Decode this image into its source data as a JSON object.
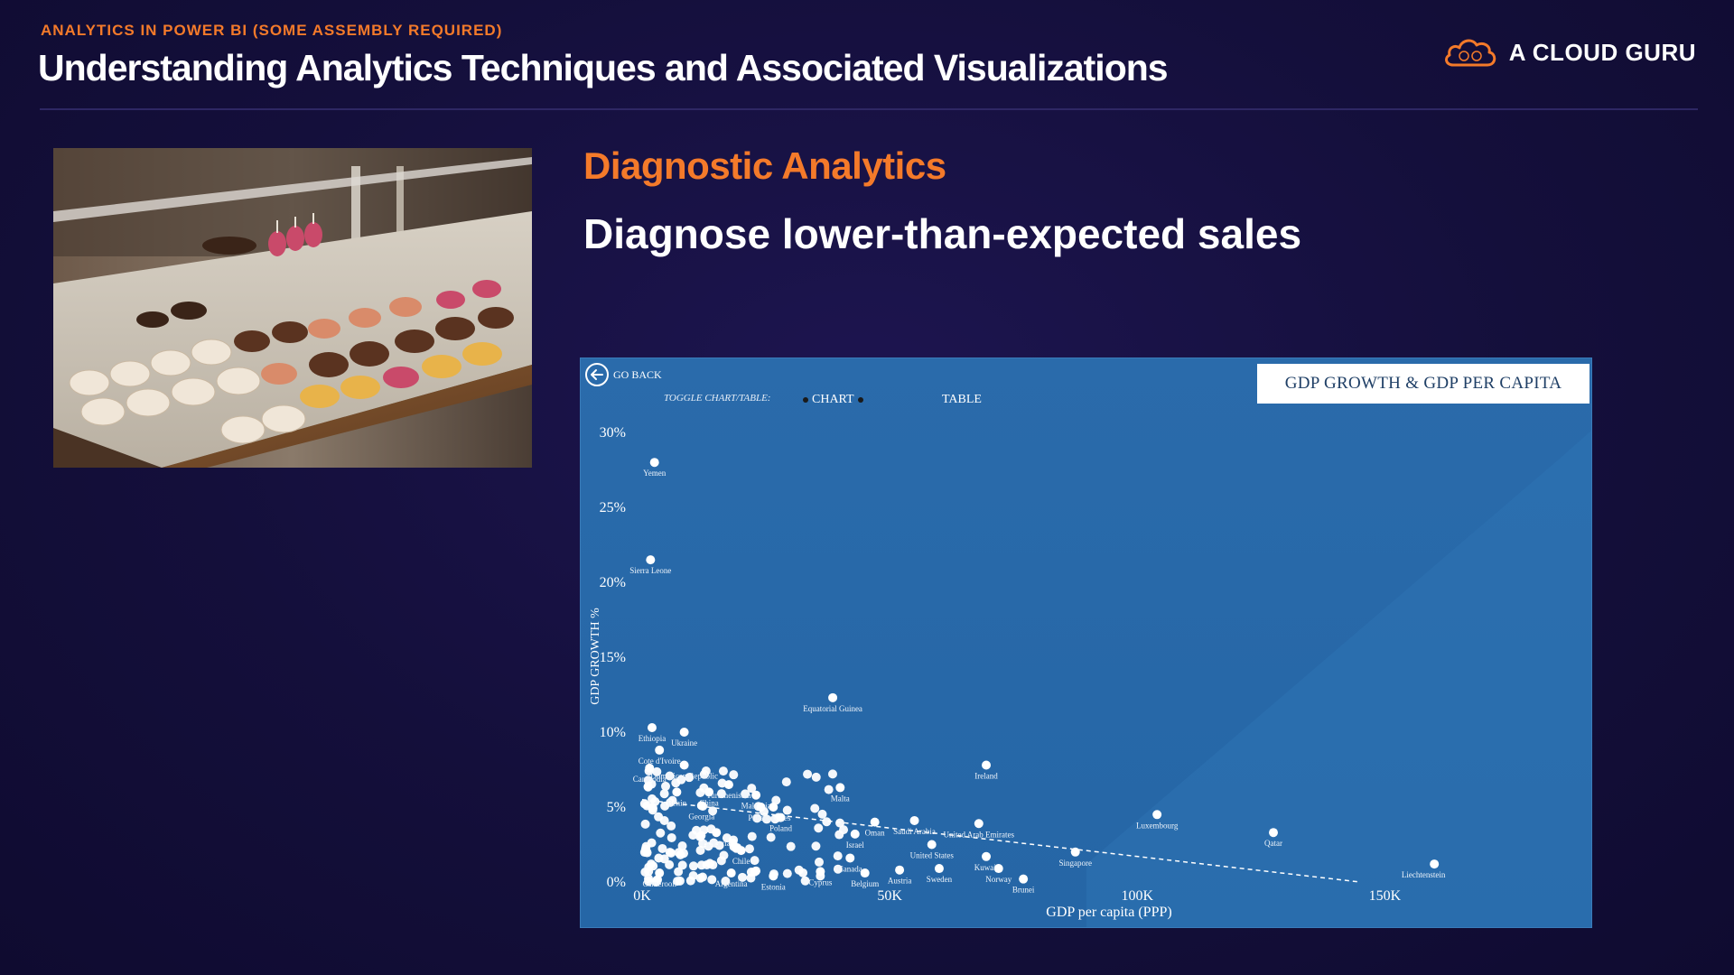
{
  "header": {
    "kicker": "ANALYTICS IN POWER BI (SOME ASSEMBLY REQUIRED)",
    "title": "Understanding Analytics Techniques and Associated Visualizations",
    "brand": "A CLOUD GURU",
    "brand_icon": "cloud-logo-icon"
  },
  "content": {
    "section_title": "Diagnostic  Analytics",
    "subtitle": "Diagnose lower-than-expected sales"
  },
  "colors": {
    "accent": "#f47a2a",
    "background": "#140f3b",
    "report_bg": "#2566a6"
  },
  "report": {
    "go_back": "GO BACK",
    "toggle_label": "TOGGLE CHART/TABLE:",
    "toggle_chart": "CHART",
    "toggle_table": "TABLE",
    "chart_title": "GDP GROWTH & GDP PER CAPITA"
  },
  "chart_data": {
    "type": "scatter",
    "title": "GDP GROWTH & GDP PER CAPITA",
    "xlabel": "GDP per capita (PPP)",
    "ylabel": "GDP GROWTH %",
    "xlim": [
      0,
      170000
    ],
    "ylim": [
      0,
      30
    ],
    "x_ticks": [
      0,
      50000,
      100000,
      150000
    ],
    "x_tick_labels": [
      "0K",
      "50K",
      "100K",
      "150K"
    ],
    "y_ticks": [
      0,
      5,
      10,
      15,
      20,
      25,
      30
    ],
    "y_tick_labels": [
      "0%",
      "5%",
      "10%",
      "15%",
      "20%",
      "25%",
      "30%"
    ],
    "trendline": {
      "style": "dashed",
      "from": [
        0,
        5.5
      ],
      "to": [
        145000,
        0
      ]
    },
    "points": [
      {
        "x": 2500,
        "y": 28,
        "label": "Yemen"
      },
      {
        "x": 1700,
        "y": 21.5,
        "label": "Sierra Leone"
      },
      {
        "x": 38500,
        "y": 12.3,
        "label": "Equatorial Guinea"
      },
      {
        "x": 2000,
        "y": 10.3,
        "label": "Ethiopia"
      },
      {
        "x": 8500,
        "y": 10.0,
        "label": "Ukraine"
      },
      {
        "x": 3500,
        "y": 8.8,
        "label": "Cote d'Ivoire"
      },
      {
        "x": 8500,
        "y": 7.8,
        "label": "Dominican Republic"
      },
      {
        "x": 17500,
        "y": 6.5,
        "label": "Turkmenistan"
      },
      {
        "x": 23000,
        "y": 5.8,
        "label": "Malaysia"
      },
      {
        "x": 40000,
        "y": 6.3,
        "label": "Malta"
      },
      {
        "x": 26500,
        "y": 5.0,
        "label": "Seychelles"
      },
      {
        "x": 24000,
        "y": 5.0,
        "label": "Panama"
      },
      {
        "x": 69500,
        "y": 7.8,
        "label": "Ireland"
      },
      {
        "x": 47000,
        "y": 4.0,
        "label": "Oman"
      },
      {
        "x": 55000,
        "y": 4.1,
        "label": "Saudi Arabia"
      },
      {
        "x": 68000,
        "y": 3.9,
        "label": "United Arab Emirates"
      },
      {
        "x": 58500,
        "y": 2.5,
        "label": "United States"
      },
      {
        "x": 60000,
        "y": 0.9,
        "label": "Sweden"
      },
      {
        "x": 69500,
        "y": 1.7,
        "label": "Kuwait"
      },
      {
        "x": 72000,
        "y": 0.9,
        "label": "Norway"
      },
      {
        "x": 77000,
        "y": 0.2,
        "label": "Brunei"
      },
      {
        "x": 87500,
        "y": 2.0,
        "label": "Singapore"
      },
      {
        "x": 104000,
        "y": 4.5,
        "label": "Luxembourg"
      },
      {
        "x": 127500,
        "y": 3.3,
        "label": "Qatar"
      },
      {
        "x": 160000,
        "y": 1.2,
        "label": "Liechtenstein"
      },
      {
        "x": 52000,
        "y": 0.8,
        "label": "Austria"
      },
      {
        "x": 45000,
        "y": 0.6,
        "label": "Belgium"
      },
      {
        "x": 42000,
        "y": 1.6,
        "label": "Canada"
      },
      {
        "x": 36000,
        "y": 0.7,
        "label": "Cyprus"
      },
      {
        "x": 26500,
        "y": 0.4,
        "label": "Estonia"
      },
      {
        "x": 18000,
        "y": 0.6,
        "label": "Argentina"
      },
      {
        "x": 1500,
        "y": 7.6,
        "label": "Cambodia"
      },
      {
        "x": 7000,
        "y": 6.0,
        "label": "Benin"
      },
      {
        "x": 13500,
        "y": 6.0,
        "label": "China"
      },
      {
        "x": 12000,
        "y": 5.1,
        "label": "Georgia"
      },
      {
        "x": 15000,
        "y": 3.3,
        "label": "Bulgaria"
      },
      {
        "x": 20000,
        "y": 2.1,
        "label": "Chile"
      },
      {
        "x": 28000,
        "y": 4.3,
        "label": "Poland"
      },
      {
        "x": 43000,
        "y": 3.2,
        "label": "Israel"
      },
      {
        "x": 3500,
        "y": 0.6,
        "label": "Cameroon"
      }
    ]
  }
}
